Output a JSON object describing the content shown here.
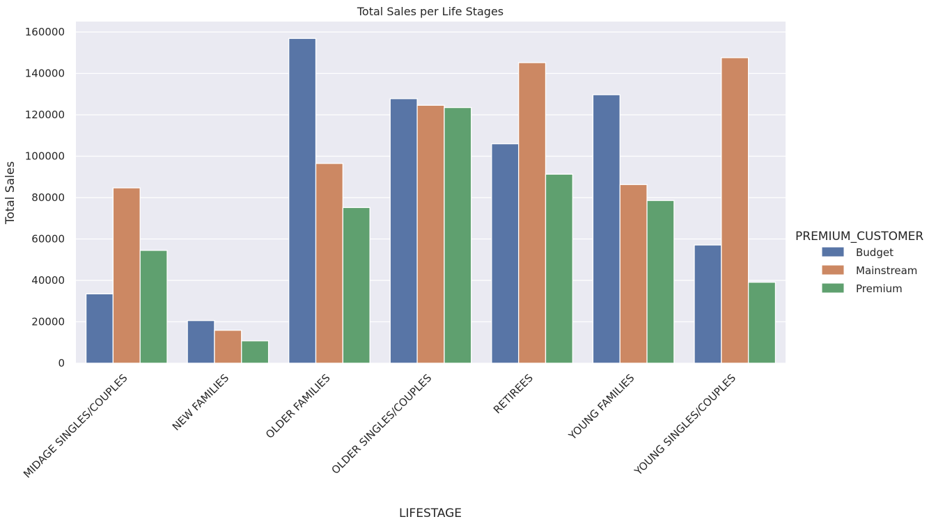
{
  "chart_data": {
    "type": "bar",
    "title": "Total Sales per Life Stages",
    "xlabel": "LIFESTAGE",
    "ylabel": "Total Sales",
    "ylim": [
      0,
      160000
    ],
    "yticks": [
      0,
      20000,
      40000,
      60000,
      80000,
      100000,
      120000,
      140000,
      160000
    ],
    "ytick_labels": [
      "0",
      "20000",
      "40000",
      "60000",
      "80000",
      "100000",
      "120000",
      "140000",
      "160000"
    ],
    "grid": true,
    "categories": [
      "MIDAGE SINGLES/COUPLES",
      "NEW FAMILIES",
      "OLDER FAMILIES",
      "OLDER SINGLES/COUPLES",
      "RETIREES",
      "YOUNG FAMILIES",
      "YOUNG SINGLES/COUPLES"
    ],
    "series": [
      {
        "name": "Budget",
        "color": "#5875A6",
        "values": [
          33500,
          20600,
          156900,
          127800,
          106000,
          129700,
          57100
        ]
      },
      {
        "name": "Mainstream",
        "color": "#CC8863",
        "values": [
          84700,
          15900,
          96500,
          124600,
          145200,
          86300,
          147600
        ]
      },
      {
        "name": "Premium",
        "color": "#5FA06F",
        "values": [
          54500,
          10800,
          75200,
          123500,
          91300,
          78600,
          39100
        ]
      }
    ],
    "legend": {
      "title": "PREMIUM_CUSTOMER",
      "position": "right"
    }
  },
  "colors": {
    "plot_background": "#EAEAF2",
    "grid": "#FFFFFF",
    "text": "#262626"
  }
}
